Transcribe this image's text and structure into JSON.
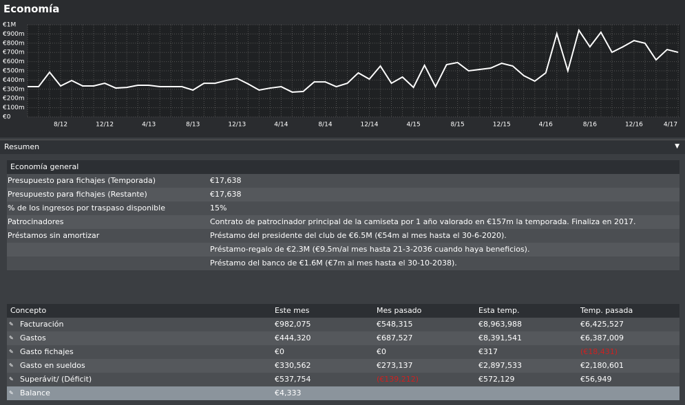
{
  "title": "Economía",
  "chart_data": {
    "type": "line",
    "categories": [
      null,
      null,
      null,
      "8/12",
      null,
      null,
      null,
      "12/12",
      null,
      null,
      null,
      "4/13",
      null,
      null,
      null,
      "8/13",
      null,
      null,
      null,
      "12/13",
      null,
      null,
      null,
      "4/14",
      null,
      null,
      null,
      "8/14",
      null,
      null,
      null,
      "12/14",
      null,
      null,
      null,
      "4/15",
      null,
      null,
      null,
      "8/15",
      null,
      null,
      null,
      "12/15",
      null,
      null,
      null,
      "4/16",
      null,
      null,
      null,
      "8/16",
      null,
      null,
      null,
      "12/16",
      null,
      null,
      null,
      "4/17"
    ],
    "series": [
      {
        "name": "Economía",
        "color": "#ffffff",
        "values": [
          328000,
          328000,
          485000,
          336000,
          395000,
          336000,
          336000,
          365000,
          313000,
          320000,
          343000,
          343000,
          328000,
          328000,
          328000,
          291000,
          365000,
          365000,
          395000,
          418000,
          358000,
          291000,
          313000,
          328000,
          269000,
          276000,
          380000,
          380000,
          328000,
          365000,
          478000,
          410000,
          552000,
          365000,
          433000,
          320000,
          560000,
          328000,
          567000,
          590000,
          500000,
          515000,
          530000,
          582000,
          552000,
          448000,
          388000,
          478000,
          903000,
          500000,
          940000,
          761000,
          918000,
          701000,
          761000,
          828000,
          799000,
          619000,
          731000,
          701000
        ]
      }
    ],
    "ylim": [
      0,
      1000000
    ],
    "yticks": [
      {
        "value": 0,
        "label": "€0"
      },
      {
        "value": 100000,
        "label": "€100m"
      },
      {
        "value": 200000,
        "label": "€200m"
      },
      {
        "value": 300000,
        "label": "€300m"
      },
      {
        "value": 400000,
        "label": "€400m"
      },
      {
        "value": 500000,
        "label": "€500m"
      },
      {
        "value": 600000,
        "label": "€600m"
      },
      {
        "value": 700000,
        "label": "€700m"
      },
      {
        "value": 800000,
        "label": "€800m"
      },
      {
        "value": 900000,
        "label": "€900m"
      },
      {
        "value": 1000000,
        "label": "€1M"
      }
    ],
    "grid": true
  },
  "summary": {
    "title": "Resumen",
    "general": {
      "title": "Economía general",
      "rows": [
        {
          "label": "Presupuesto para fichajes (Temporada)",
          "values": [
            "€17,638"
          ]
        },
        {
          "label": "Presupuesto para fichajes (Restante)",
          "values": [
            "€17,638"
          ]
        },
        {
          "label": "% de los ingresos por traspaso disponible",
          "values": [
            "15%"
          ]
        },
        {
          "label": "Patrocinadores",
          "values": [
            "Contrato de patrocinador principal de la camiseta por 1 año valorado en €157m la temporada. Finaliza en 2017."
          ]
        },
        {
          "label": "Préstamos sin amortizar",
          "values": [
            "Préstamo del presidente del club de €6.5M (€54m al mes hasta el 30-6-2020).",
            "Préstamo-regalo de €2.3M (€9.5m/al mes hasta 21-3-2036 cuando haya beneficios).",
            "Préstamo del banco de €1.6M (€7m al mes hasta el 30-10-2038)."
          ]
        }
      ]
    },
    "table": {
      "header": [
        "Concepto",
        "Este mes",
        "Mes pasado",
        "Esta temp.",
        "Temp. pasada"
      ],
      "negative_color": "#d02020",
      "rows": [
        {
          "label": "Facturación",
          "values": [
            "€982,075",
            "€548,315",
            "€8,963,988",
            "€6,425,527"
          ],
          "negative": [
            false,
            false,
            false,
            false
          ]
        },
        {
          "label": "Gastos",
          "values": [
            "€444,320",
            "€687,527",
            "€8,391,541",
            "€6,387,009"
          ],
          "negative": [
            false,
            false,
            false,
            false
          ]
        },
        {
          "label": "Gasto fichajes",
          "values": [
            "€0",
            "€0",
            "€317",
            "(€18,431)"
          ],
          "negative": [
            false,
            false,
            false,
            true
          ]
        },
        {
          "label": "Gasto en sueldos",
          "values": [
            "€330,562",
            "€273,137",
            "€2,897,533",
            "€2,180,601"
          ],
          "negative": [
            false,
            false,
            false,
            false
          ]
        },
        {
          "label": "Superávit/ (Déficit)",
          "values": [
            "€537,754",
            "(€139,212)",
            "€572,129",
            "€56,949"
          ],
          "negative": [
            false,
            true,
            false,
            false
          ]
        },
        {
          "label": "Balance",
          "values": [
            "€4,333"
          ],
          "negative": [
            false
          ],
          "highlight": true
        }
      ]
    }
  }
}
